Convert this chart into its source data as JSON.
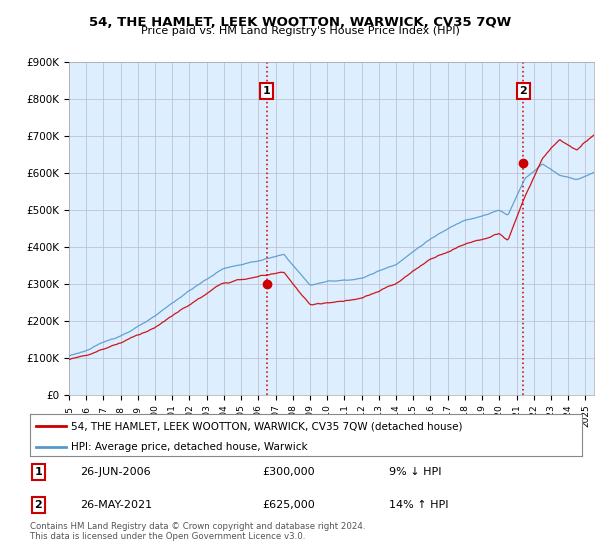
{
  "title": "54, THE HAMLET, LEEK WOOTTON, WARWICK, CV35 7QW",
  "subtitle": "Price paid vs. HM Land Registry's House Price Index (HPI)",
  "ylim": [
    0,
    900000
  ],
  "yticks": [
    0,
    100000,
    200000,
    300000,
    400000,
    500000,
    600000,
    700000,
    800000,
    900000
  ],
  "ytick_labels": [
    "£0",
    "£100K",
    "£200K",
    "£300K",
    "£400K",
    "£500K",
    "£600K",
    "£700K",
    "£800K",
    "£900K"
  ],
  "line1_color": "#cc0000",
  "line2_color": "#5599cc",
  "chart_bg_color": "#ddeeff",
  "marker_color": "#cc0000",
  "vline_color": "#cc0000",
  "background_color": "#ffffff",
  "grid_color": "#bbbbcc",
  "legend_label1": "54, THE HAMLET, LEEK WOOTTON, WARWICK, CV35 7QW (detached house)",
  "legend_label2": "HPI: Average price, detached house, Warwick",
  "annotation1_date": "26-JUN-2006",
  "annotation1_price": "£300,000",
  "annotation1_hpi": "9% ↓ HPI",
  "annotation2_date": "26-MAY-2021",
  "annotation2_price": "£625,000",
  "annotation2_hpi": "14% ↑ HPI",
  "footer": "Contains HM Land Registry data © Crown copyright and database right 2024.\nThis data is licensed under the Open Government Licence v3.0.",
  "sale1_year": 2006.48,
  "sale1_price": 300000,
  "sale2_year": 2021.4,
  "sale2_price": 625000
}
